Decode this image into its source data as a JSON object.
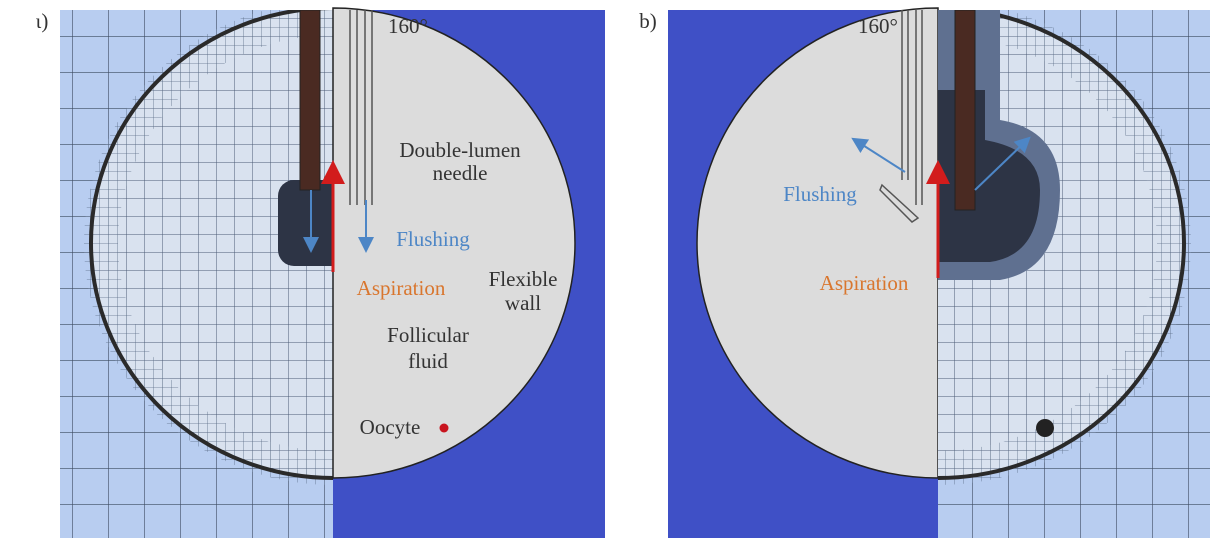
{
  "panel_a": {
    "label": "ι)",
    "angle": "160°",
    "needle": [
      "Double-lumen",
      "needle"
    ],
    "flushing": "Flushing",
    "aspiration": "Aspiration",
    "wall": [
      "Flexible",
      "wall"
    ],
    "fluid": [
      "Follicular",
      "fluid"
    ],
    "oocyte": "Oocyte"
  },
  "panel_b": {
    "label": "b)",
    "angle": "160°",
    "flushing": "Flushing",
    "aspiration": "Aspiration"
  }
}
